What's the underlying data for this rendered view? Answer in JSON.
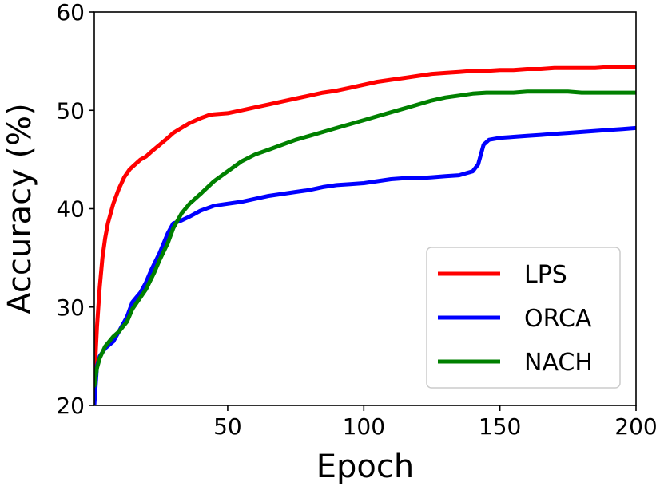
{
  "chart_data": {
    "type": "line",
    "title": "",
    "xlabel": "Epoch",
    "ylabel": "Accuracy (%)",
    "xlim": [
      1,
      200
    ],
    "ylim": [
      20,
      60
    ],
    "xticks": [
      50,
      100,
      150,
      200
    ],
    "yticks": [
      20,
      30,
      40,
      50,
      60
    ],
    "grid": false,
    "legend_position": "lower-right",
    "series": [
      {
        "name": "LPS",
        "color": "#ff0000",
        "x": [
          1,
          2,
          3,
          4,
          5,
          6,
          8,
          10,
          12,
          14,
          16,
          18,
          20,
          22,
          25,
          28,
          30,
          33,
          36,
          40,
          43,
          45,
          50,
          55,
          60,
          65,
          70,
          75,
          80,
          85,
          90,
          95,
          100,
          105,
          110,
          115,
          120,
          125,
          130,
          135,
          140,
          145,
          150,
          155,
          160,
          165,
          170,
          175,
          180,
          185,
          190,
          195,
          200
        ],
        "y": [
          22.5,
          28,
          32,
          35,
          37,
          38.5,
          40.5,
          42,
          43.2,
          44,
          44.5,
          45,
          45.3,
          45.8,
          46.5,
          47.2,
          47.7,
          48.2,
          48.7,
          49.2,
          49.5,
          49.6,
          49.7,
          50,
          50.3,
          50.6,
          50.9,
          51.2,
          51.5,
          51.8,
          52,
          52.3,
          52.6,
          52.9,
          53.1,
          53.3,
          53.5,
          53.7,
          53.8,
          53.9,
          54,
          54,
          54.1,
          54.1,
          54.2,
          54.2,
          54.3,
          54.3,
          54.3,
          54.3,
          54.4,
          54.4,
          54.4
        ]
      },
      {
        "name": "ORCA",
        "color": "#0000ff",
        "x": [
          1,
          2,
          3,
          5,
          8,
          10,
          13,
          15,
          18,
          20,
          22,
          25,
          28,
          30,
          33,
          36,
          40,
          45,
          50,
          55,
          60,
          65,
          70,
          75,
          80,
          85,
          90,
          95,
          100,
          105,
          110,
          115,
          120,
          125,
          130,
          135,
          140,
          142,
          144,
          146,
          150,
          155,
          160,
          165,
          170,
          175,
          180,
          185,
          190,
          195,
          200
        ],
        "y": [
          20,
          24,
          25,
          25.8,
          26.5,
          27.5,
          29,
          30.5,
          31.5,
          32.5,
          33.8,
          35.5,
          37.5,
          38.5,
          38.8,
          39.2,
          39.8,
          40.3,
          40.5,
          40.7,
          41,
          41.3,
          41.5,
          41.7,
          41.9,
          42.2,
          42.4,
          42.5,
          42.6,
          42.8,
          43,
          43.1,
          43.1,
          43.2,
          43.3,
          43.4,
          43.8,
          44.5,
          46.5,
          47,
          47.2,
          47.3,
          47.4,
          47.5,
          47.6,
          47.7,
          47.8,
          47.9,
          48,
          48.1,
          48.2
        ]
      },
      {
        "name": "NACH",
        "color": "#008000",
        "x": [
          1,
          2,
          3,
          5,
          8,
          10,
          13,
          15,
          18,
          20,
          23,
          25,
          28,
          30,
          33,
          36,
          40,
          45,
          50,
          55,
          60,
          65,
          70,
          75,
          80,
          85,
          90,
          95,
          100,
          105,
          110,
          115,
          120,
          125,
          130,
          135,
          140,
          145,
          150,
          155,
          160,
          165,
          170,
          175,
          180,
          185,
          190,
          195,
          200
        ],
        "y": [
          22,
          23.8,
          24.8,
          26,
          27,
          27.5,
          28.5,
          29.8,
          31,
          31.8,
          33.5,
          34.8,
          36.5,
          38,
          39.5,
          40.5,
          41.5,
          42.8,
          43.8,
          44.8,
          45.5,
          46,
          46.5,
          47,
          47.4,
          47.8,
          48.2,
          48.6,
          49,
          49.4,
          49.8,
          50.2,
          50.6,
          51,
          51.3,
          51.5,
          51.7,
          51.8,
          51.8,
          51.8,
          51.9,
          51.9,
          51.9,
          51.9,
          51.8,
          51.8,
          51.8,
          51.8,
          51.8
        ]
      }
    ]
  }
}
